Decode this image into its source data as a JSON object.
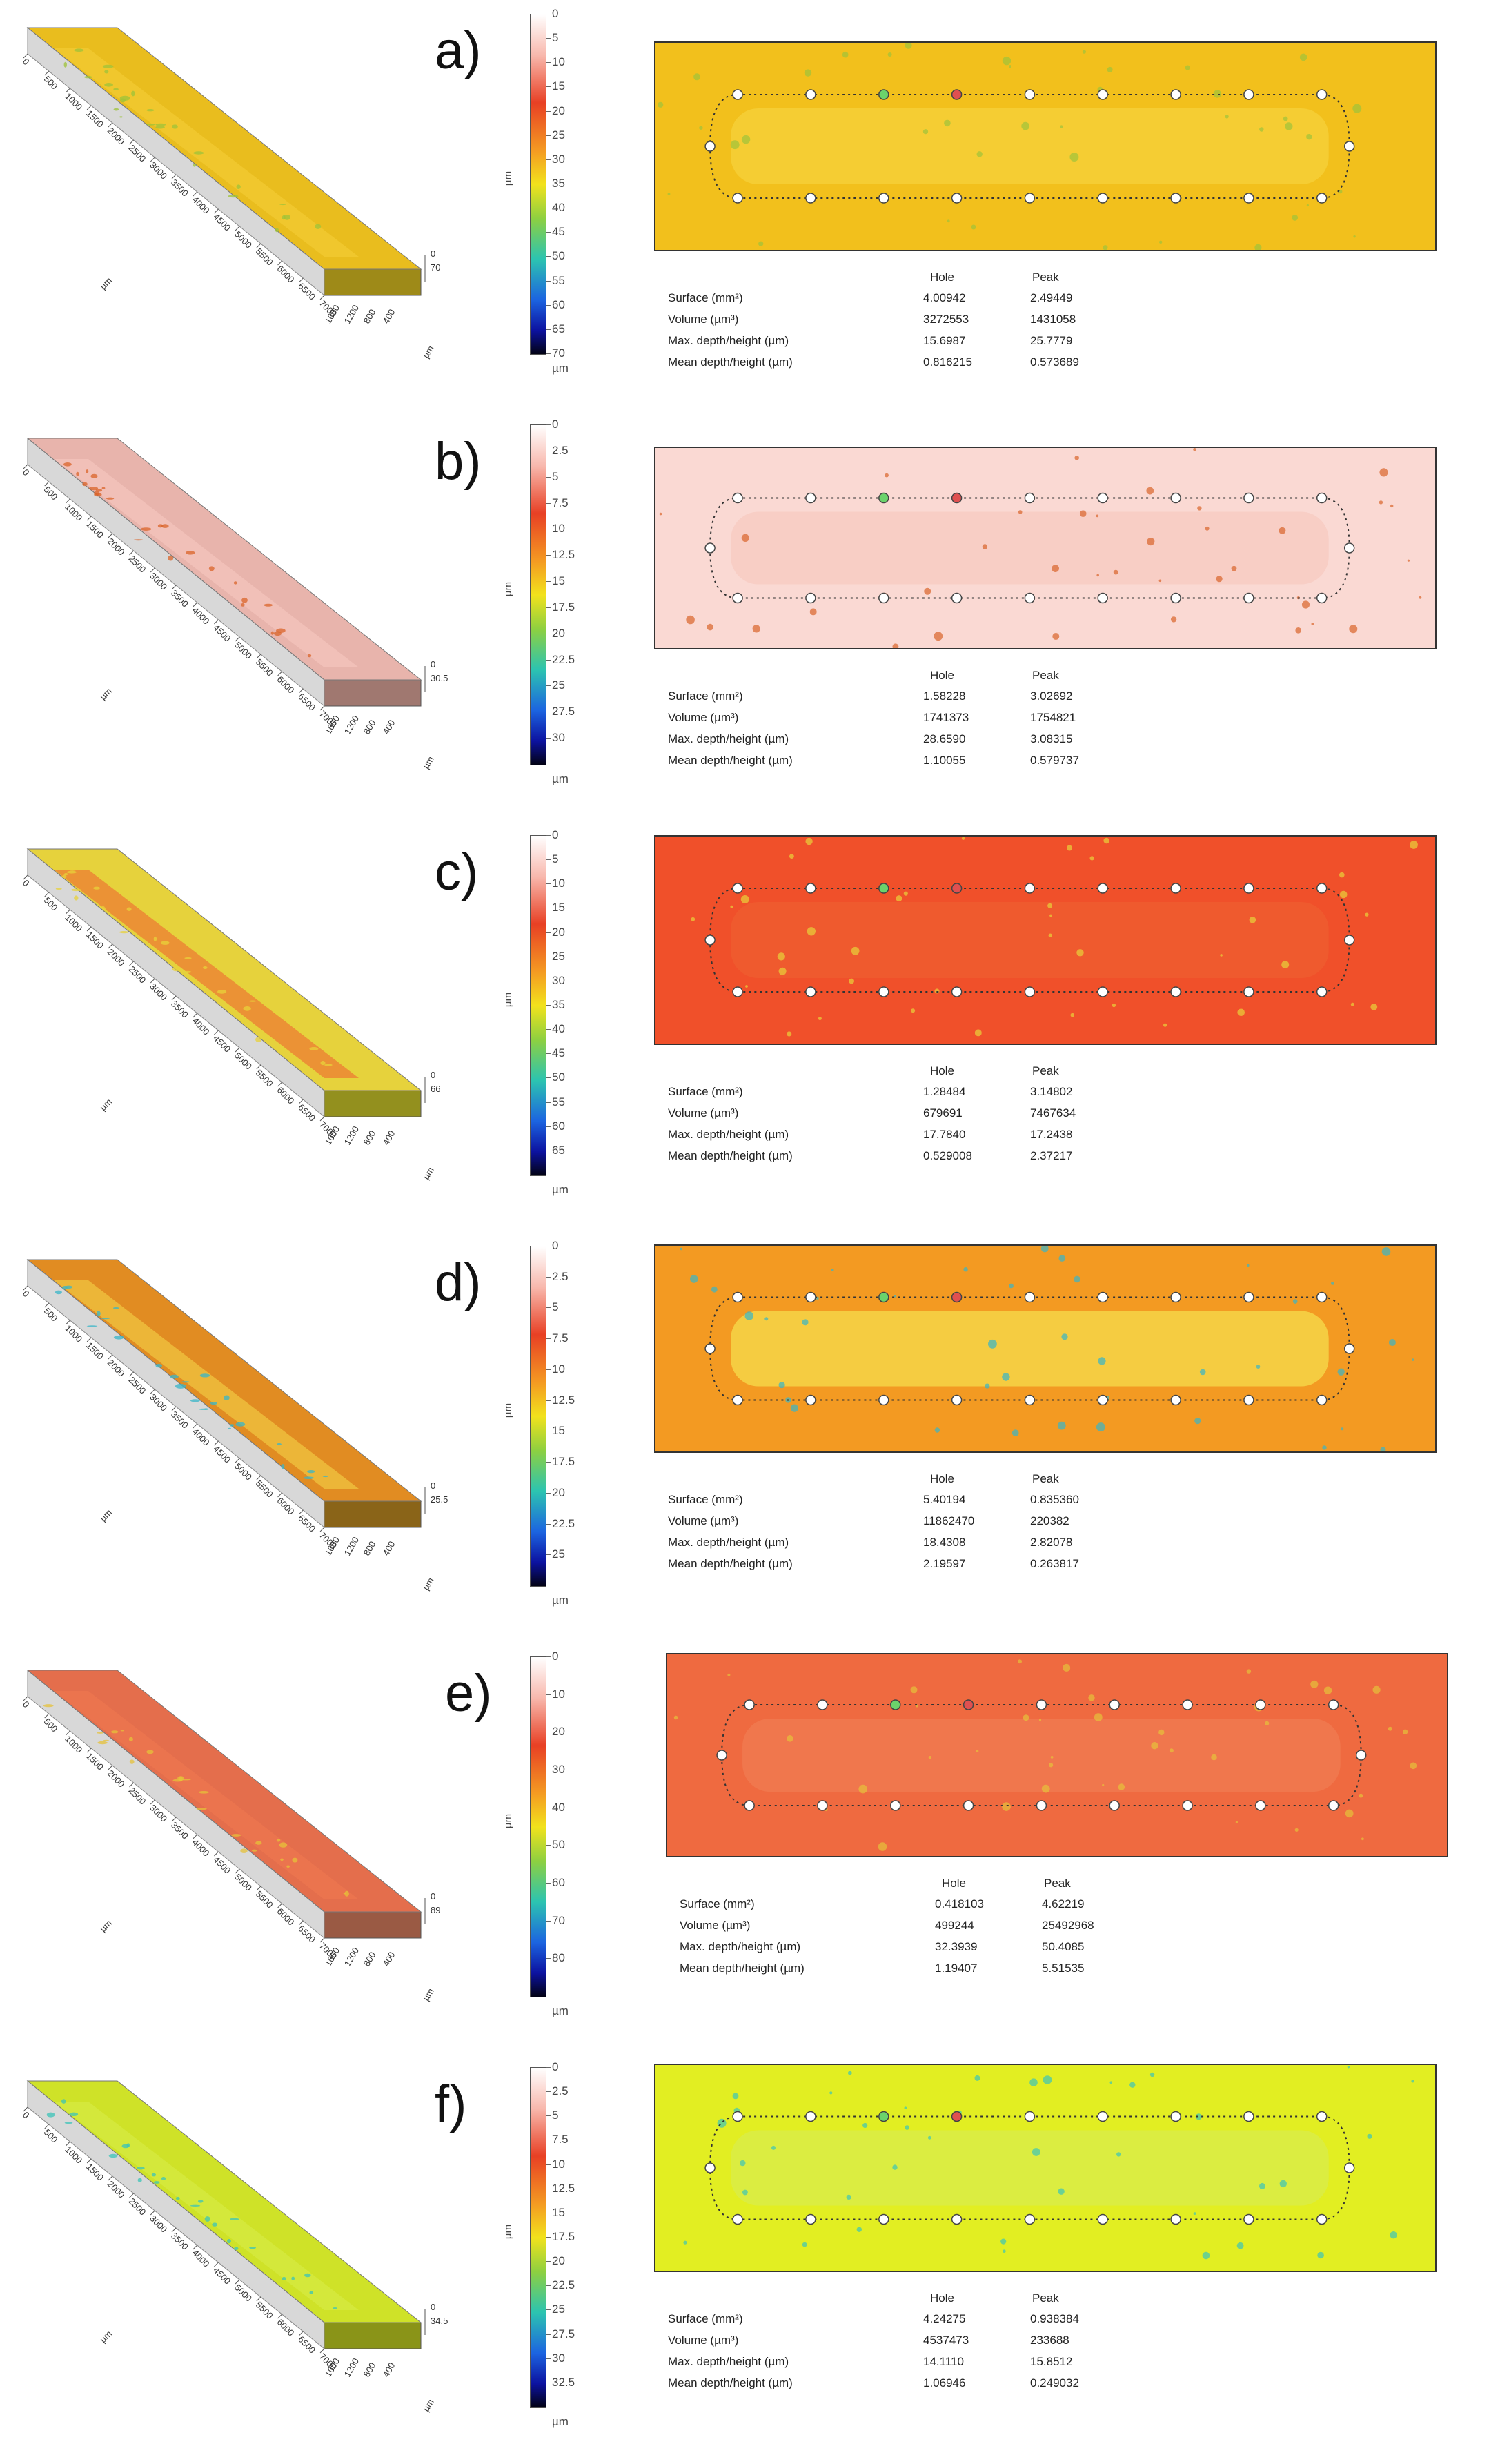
{
  "stats_labels": {
    "hole": "Hole",
    "peak": "Peak",
    "surface": "Surface (mm²)",
    "volume": "Volume (µm³)",
    "max": "Max. depth/height (µm)",
    "mean": "Mean depth/height (µm)"
  },
  "unit": "µm",
  "panels": [
    {
      "letter": "a)",
      "zmax": "70",
      "ticks": [
        "0",
        "5",
        "10",
        "15",
        "20",
        "25",
        "30",
        "35",
        "40",
        "45",
        "50",
        "55",
        "60",
        "65",
        "70"
      ],
      "colors": {
        "map": "#f2c01c",
        "track": "#f5cf3a",
        "spot": "#9ec33a",
        "top3d": "#e9bd1e",
        "side3d": "#9e8a18"
      },
      "stats": {
        "surface": [
          "4.00942",
          "2.49449"
        ],
        "volume": [
          "3272553",
          "1431058"
        ],
        "max": [
          "15.6987",
          "25.7779"
        ],
        "mean": [
          "0.816215",
          "0.573689"
        ]
      }
    },
    {
      "letter": "b)",
      "zmax": "30.5",
      "ticks": [
        "0",
        "2.5",
        "5",
        "7.5",
        "10",
        "12.5",
        "15",
        "17.5",
        "20",
        "22.5",
        "25",
        "27.5",
        "30"
      ],
      "colors": {
        "map": "#fad9d3",
        "track": "#f7cbc2",
        "spot": "#d9642a",
        "top3d": "#e8b4ac",
        "side3d": "#a07870"
      },
      "stats": {
        "surface": [
          "1.58228",
          "3.02692"
        ],
        "volume": [
          "1741373",
          "1754821"
        ],
        "max": [
          "28.6590",
          "3.08315"
        ],
        "mean": [
          "1.10055",
          "0.579737"
        ]
      }
    },
    {
      "letter": "c)",
      "zmax": "66",
      "ticks": [
        "0",
        "5",
        "10",
        "15",
        "20",
        "25",
        "30",
        "35",
        "40",
        "45",
        "50",
        "55",
        "60",
        "65"
      ],
      "colors": {
        "map": "#f0502a",
        "track": "#ef5c30",
        "spot": "#e8d23a",
        "top3d": "#e6d23c",
        "side3d": "#93901e"
      },
      "stats": {
        "surface": [
          "1.28484",
          "3.14802"
        ],
        "volume": [
          "679691",
          "7467634"
        ],
        "max": [
          "17.7840",
          "17.2438"
        ],
        "mean": [
          "0.529008",
          "2.37217"
        ]
      }
    },
    {
      "letter": "d)",
      "zmax": "25.5",
      "ticks": [
        "0",
        "2.5",
        "5",
        "7.5",
        "10",
        "12.5",
        "15",
        "17.5",
        "20",
        "22.5",
        "25"
      ],
      "colors": {
        "map": "#f39a22",
        "track": "#f5d84a",
        "spot": "#38b5c8",
        "top3d": "#e18c22",
        "side3d": "#8a6418"
      },
      "stats": {
        "surface": [
          "5.40194",
          "0.835360"
        ],
        "volume": [
          "11862470",
          "220382"
        ],
        "max": [
          "18.4308",
          "2.82078"
        ],
        "mean": [
          "2.19597",
          "0.263817"
        ]
      }
    },
    {
      "letter": "e)",
      "zmax": "89",
      "ticks": [
        "0",
        "10",
        "20",
        "30",
        "40",
        "50",
        "60",
        "70",
        "80"
      ],
      "colors": {
        "map": "#ef6a40",
        "track": "#f07a50",
        "spot": "#e6c23a",
        "top3d": "#e46e4c",
        "side3d": "#9a5a44"
      },
      "stats": {
        "surface": [
          "0.418103",
          "4.62219"
        ],
        "volume": [
          "499244",
          "25492968"
        ],
        "max": [
          "32.3939",
          "50.4085"
        ],
        "mean": [
          "1.19407",
          "5.51535"
        ]
      }
    },
    {
      "letter": "f)",
      "zmax": "34.5",
      "ticks": [
        "0",
        "2.5",
        "5",
        "7.5",
        "10",
        "12.5",
        "15",
        "17.5",
        "20",
        "22.5",
        "25",
        "27.5",
        "30",
        "32.5"
      ],
      "colors": {
        "map": "#e2ee22",
        "track": "#d9ec4a",
        "spot": "#3cc4b8",
        "top3d": "#cfe228",
        "side3d": "#8a9418"
      },
      "stats": {
        "surface": [
          "4.24275",
          "0.938384"
        ],
        "volume": [
          "4537473",
          "233688"
        ],
        "max": [
          "14.1110",
          "15.8512"
        ],
        "mean": [
          "1.06946",
          "0.249032"
        ]
      }
    }
  ]
}
